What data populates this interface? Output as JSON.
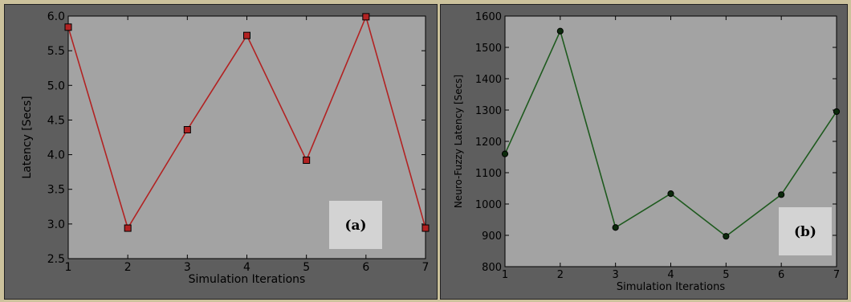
{
  "chart_data": [
    {
      "type": "line",
      "panel_label": "(a)",
      "xlabel": "Simulation Iterations",
      "ylabel": "Latency [Secs]",
      "x": [
        1,
        2,
        3,
        4,
        5,
        6,
        7
      ],
      "xlim": [
        1,
        7
      ],
      "ylim": [
        2.5,
        6.0
      ],
      "xticks": [
        "1",
        "2",
        "3",
        "4",
        "5",
        "6",
        "7"
      ],
      "yticks": [
        "2.5",
        "3.0",
        "3.5",
        "4.0",
        "4.5",
        "5.0",
        "5.5",
        "6.0"
      ],
      "series": [
        {
          "values": [
            5.84,
            2.94,
            4.36,
            5.72,
            3.92,
            5.99,
            2.94
          ],
          "color": "#b22222",
          "marker": "square"
        }
      ],
      "grid": false,
      "plot_background": "#a3a3a3",
      "figure_background": "#5e5e5e"
    },
    {
      "type": "line",
      "panel_label": "(b)",
      "xlabel": "Simulation Iterations",
      "ylabel": "Neuro-Fuzzy Latency [Secs]",
      "x": [
        1,
        2,
        3,
        4,
        5,
        6,
        7
      ],
      "xlim": [
        1,
        7
      ],
      "ylim": [
        800,
        1600
      ],
      "xticks": [
        "1",
        "2",
        "3",
        "4",
        "5",
        "6",
        "7"
      ],
      "yticks": [
        "800",
        "900",
        "1000",
        "1100",
        "1200",
        "1300",
        "1400",
        "1500",
        "1600"
      ],
      "series": [
        {
          "values": [
            1160,
            1552,
            925,
            1033,
            897,
            1030,
            1295
          ],
          "color": "#1e5a1e",
          "marker": "circle"
        }
      ],
      "grid": false,
      "plot_background": "#a3a3a3",
      "figure_background": "#5e5e5e"
    }
  ]
}
